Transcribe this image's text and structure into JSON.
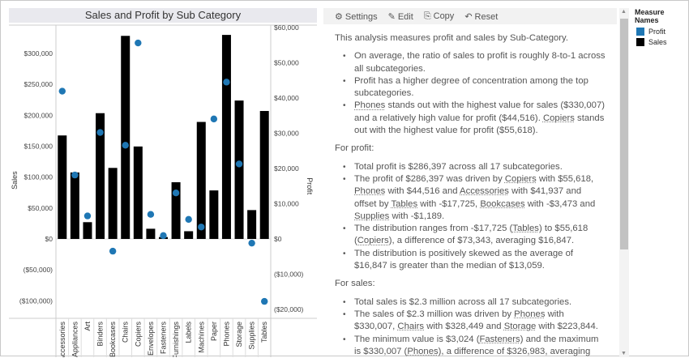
{
  "chart_data": {
    "type": "bar",
    "title": "Sales and Profit by Sub Category",
    "categories": [
      "Accessories",
      "Appliances",
      "Art",
      "Binders",
      "Bookcases",
      "Chairs",
      "Copiers",
      "Envelopes",
      "Fasteners",
      "Furnishings",
      "Labels",
      "Machines",
      "Paper",
      "Phones",
      "Storage",
      "Supplies",
      "Tables"
    ],
    "series": [
      {
        "name": "Sales",
        "type": "bar",
        "axis": "left",
        "color": "#000000",
        "values": [
          167380,
          107532,
          27119,
          203413,
          114880,
          328449,
          149528,
          16476,
          3024,
          91705,
          12486,
          189239,
          78479,
          330007,
          223844,
          46674,
          206966
        ]
      },
      {
        "name": "Profit",
        "type": "scatter",
        "axis": "right",
        "color": "#1f77b4",
        "values": [
          41937,
          18138,
          6528,
          30222,
          -3473,
          26590,
          55618,
          6964,
          950,
          13059,
          5546,
          3385,
          34054,
          44516,
          21279,
          -1189,
          -17725
        ]
      }
    ],
    "ylabel": "Sales",
    "y2label": "Profit",
    "ylim": [
      -130000,
      345000
    ],
    "y2lim": [
      -21500,
      60500
    ],
    "yticks": [
      {
        "v": 300000,
        "t": "$300,000"
      },
      {
        "v": 250000,
        "t": "$250,000"
      },
      {
        "v": 200000,
        "t": "$200,000"
      },
      {
        "v": 150000,
        "t": "$150,000"
      },
      {
        "v": 100000,
        "t": "$100,000"
      },
      {
        "v": 50000,
        "t": "$50,000"
      },
      {
        "v": 0,
        "t": "$0"
      },
      {
        "v": -50000,
        "t": "($50,000)"
      },
      {
        "v": -100000,
        "t": "($100,000)"
      }
    ],
    "y2ticks": [
      {
        "v": 60000,
        "t": "$60,000"
      },
      {
        "v": 50000,
        "t": "$50,000"
      },
      {
        "v": 40000,
        "t": "$40,000"
      },
      {
        "v": 30000,
        "t": "$30,000"
      },
      {
        "v": 20000,
        "t": "$20,000"
      },
      {
        "v": 10000,
        "t": "$10,000"
      },
      {
        "v": 0,
        "t": "$0"
      },
      {
        "v": -10000,
        "t": "($10,000)"
      },
      {
        "v": -20000,
        "t": "($20,000)"
      }
    ],
    "grid": false,
    "legend": "right"
  },
  "toolbar": {
    "settings": "Settings",
    "edit": "Edit",
    "copy": "Copy",
    "reset": "Reset"
  },
  "narrative": {
    "intro": "This analysis measures profit and sales by Sub-Category.",
    "b1": "On average, the ratio of sales to profit is roughly 8-to-1 across all subcategories.",
    "b2": "Profit has a higher degree of concentration among the top subcategories.",
    "b3a": "Phones",
    "b3b": " stands out with the highest value for sales ($330,007) and a relatively high value for profit ($44,516). ",
    "b3c": "Copiers",
    "b3d": " stands out with the highest value for profit ($55,618).",
    "profit_h": "For profit:",
    "p1": "Total profit is $286,397 across all 17 subcategories.",
    "p2a": "The profit of $286,397 was driven by ",
    "p2b": "Copiers",
    "p2c": " with $55,618, ",
    "p2d": "Phones",
    "p2e": " with $44,516 and ",
    "p2f": "Accessories",
    "p2g": " with $41,937 and offset by ",
    "p2h": "Tables",
    "p2i": " with -$17,725, ",
    "p2j": "Bookcases",
    "p2k": " with -$3,473 and ",
    "p2l": "Supplies",
    "p2m": " with -$1,189.",
    "p3a": "The distribution ranges from -$17,725 (",
    "p3b": "Tables",
    "p3c": ") to $55,618 (",
    "p3d": "Copiers",
    "p3e": "), a difference of $73,343, averaging $16,847.",
    "p4": "The distribution is positively skewed as the average of $16,847 is greater than the median of $13,059.",
    "sales_h": "For sales:",
    "s1": "Total sales is $2.3 million across all 17 subcategories.",
    "s2a": "The sales of $2.3 million was driven by ",
    "s2b": "Phones",
    "s2c": " with $330,007, ",
    "s2d": "Chairs",
    "s2e": " with $328,449 and ",
    "s2f": "Storage",
    "s2g": " with $223,844.",
    "s3a": "The minimum value is $3,024 (",
    "s3b": "Fasteners",
    "s3c": ") and the maximum is $330,007 (",
    "s3d": "Phones",
    "s3e": "), a difference of $326,983, averaging"
  },
  "legend": {
    "title": "Measure Names",
    "items": [
      {
        "label": "Profit",
        "color": "#1f77b4"
      },
      {
        "label": "Sales",
        "color": "#000000"
      }
    ]
  }
}
